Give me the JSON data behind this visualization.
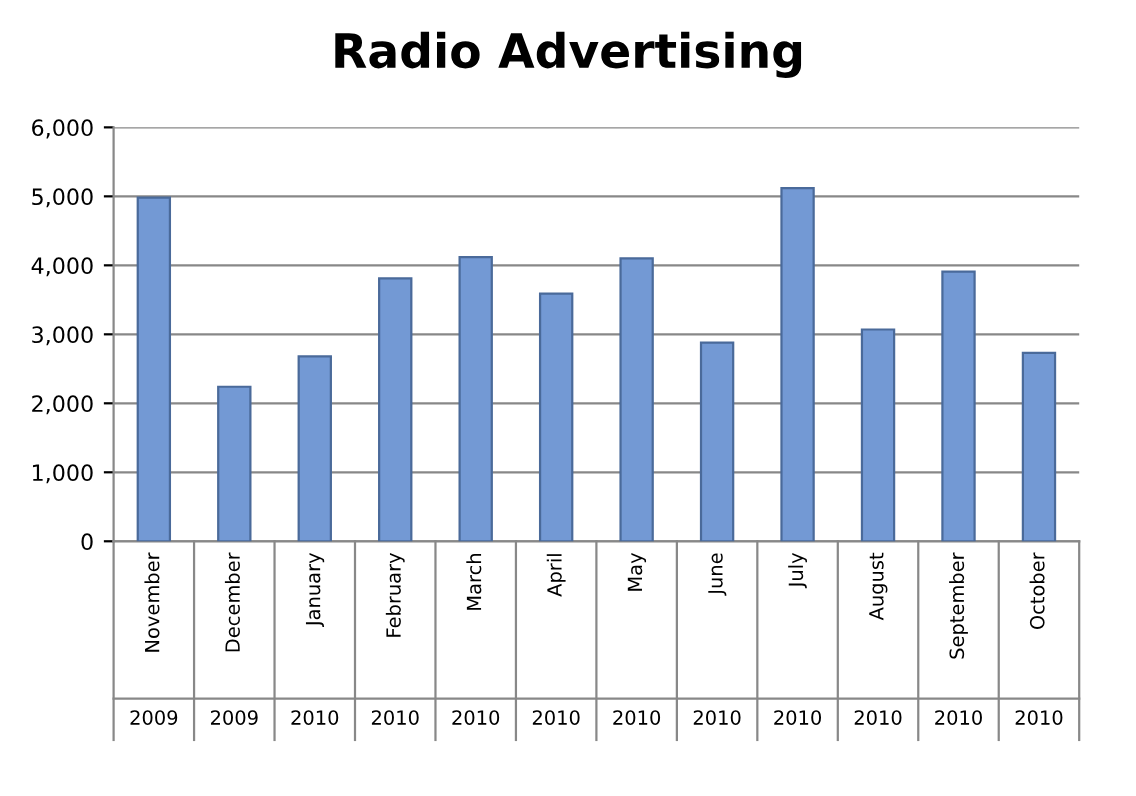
{
  "chart_data": {
    "type": "bar",
    "title": "Radio Advertising",
    "categories": [
      "November\n2009",
      "December\n2009",
      "January\n2010",
      "February\n2010",
      "March\n2010",
      "April\n2010",
      "May\n2010",
      "June\n2010",
      "July\n2010",
      "August\n2010",
      "September\n2010",
      "October\n2010"
    ],
    "values": [
      4980,
      2240,
      2680,
      3810,
      4120,
      3590,
      4100,
      2880,
      5120,
      3070,
      3910,
      2730
    ],
    "color": "#7399d4",
    "ylim": [
      0,
      6000
    ],
    "yticks": [
      {
        "value": 0,
        "label": "0"
      },
      {
        "value": 1000,
        "label": "1,000"
      },
      {
        "value": 2000,
        "label": "2,000"
      },
      {
        "value": 3000,
        "label": "3,000"
      },
      {
        "value": 4000,
        "label": "4,000"
      },
      {
        "value": 5000,
        "label": "5,000"
      },
      {
        "value": 6000,
        "label": "6,000"
      }
    ],
    "grid": "y",
    "legend": false
  }
}
